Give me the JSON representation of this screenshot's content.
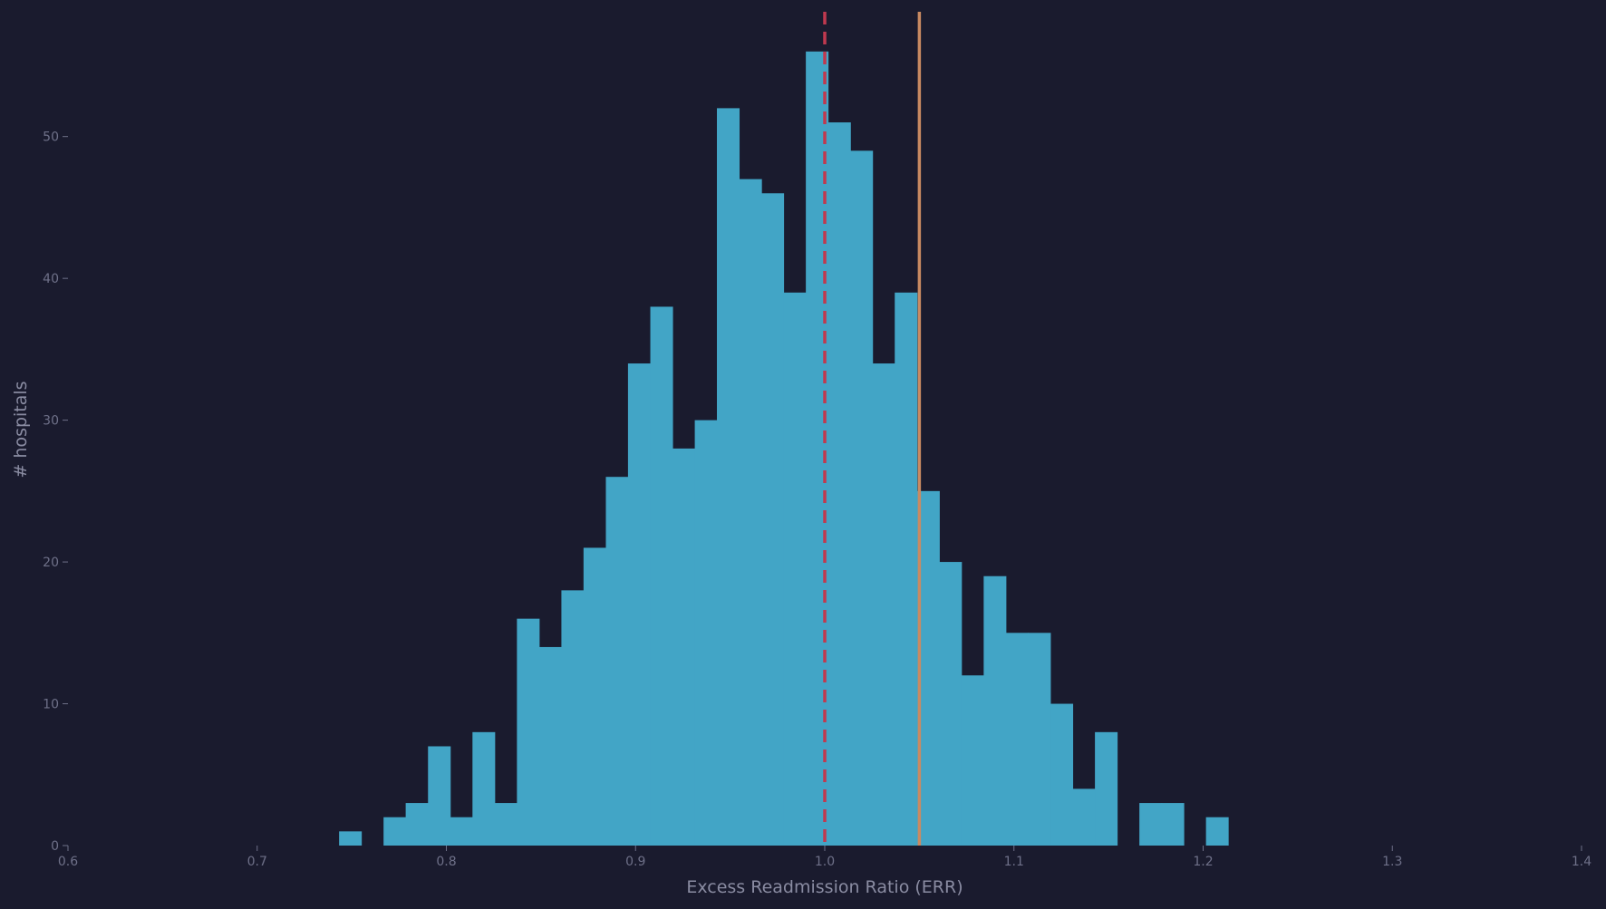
{
  "chart_data": {
    "type": "bar",
    "title": "",
    "xlabel": "Excess Readmission Ratio (ERR)",
    "ylabel": "# hospitals",
    "xlim": [
      0.6,
      1.4
    ],
    "ylim": [
      0,
      56
    ],
    "xticks": [
      "0.6",
      "0.7",
      "0.8",
      "0.9",
      "1.0",
      "1.1",
      "1.2",
      "1.3",
      "1.4"
    ],
    "yticks": [
      "0",
      "10",
      "20",
      "30",
      "40",
      "50"
    ],
    "bin_width": 0.01175,
    "bins": [
      {
        "x0": 0.7433,
        "count": 1
      },
      {
        "x0": 0.755,
        "count": 0
      },
      {
        "x0": 0.7668,
        "count": 2
      },
      {
        "x0": 0.7785,
        "count": 3
      },
      {
        "x0": 0.7903,
        "count": 7
      },
      {
        "x0": 0.802,
        "count": 2
      },
      {
        "x0": 0.8138,
        "count": 8
      },
      {
        "x0": 0.8255,
        "count": 3
      },
      {
        "x0": 0.8373,
        "count": 16
      },
      {
        "x0": 0.849,
        "count": 14
      },
      {
        "x0": 0.8608,
        "count": 18
      },
      {
        "x0": 0.8725,
        "count": 21
      },
      {
        "x0": 0.8843,
        "count": 26
      },
      {
        "x0": 0.896,
        "count": 34
      },
      {
        "x0": 0.9078,
        "count": 38
      },
      {
        "x0": 0.9195,
        "count": 28
      },
      {
        "x0": 0.9313,
        "count": 30
      },
      {
        "x0": 0.943,
        "count": 52
      },
      {
        "x0": 0.9548,
        "count": 47
      },
      {
        "x0": 0.9665,
        "count": 46
      },
      {
        "x0": 0.9783,
        "count": 39
      },
      {
        "x0": 0.99,
        "count": 56
      },
      {
        "x0": 1.0018,
        "count": 51
      },
      {
        "x0": 1.0135,
        "count": 49
      },
      {
        "x0": 1.0253,
        "count": 34
      },
      {
        "x0": 1.037,
        "count": 39
      },
      {
        "x0": 1.0488,
        "count": 25
      },
      {
        "x0": 1.0605,
        "count": 20
      },
      {
        "x0": 1.0723,
        "count": 12
      },
      {
        "x0": 1.084,
        "count": 19
      },
      {
        "x0": 1.0958,
        "count": 15
      },
      {
        "x0": 1.1075,
        "count": 15
      },
      {
        "x0": 1.1193,
        "count": 10
      },
      {
        "x0": 1.131,
        "count": 4
      },
      {
        "x0": 1.1428,
        "count": 8
      },
      {
        "x0": 1.1545,
        "count": 0
      },
      {
        "x0": 1.1663,
        "count": 3
      },
      {
        "x0": 1.178,
        "count": 3
      },
      {
        "x0": 1.1898,
        "count": 0
      },
      {
        "x0": 1.2015,
        "count": 2
      }
    ],
    "reference_lines": [
      {
        "x": 1.0,
        "style": "dashed",
        "color": "#c0394f"
      },
      {
        "x": 1.05,
        "style": "solid",
        "color": "#c98a62"
      }
    ],
    "bar_color": "#42a5c6",
    "grid": false,
    "legend": "none"
  }
}
